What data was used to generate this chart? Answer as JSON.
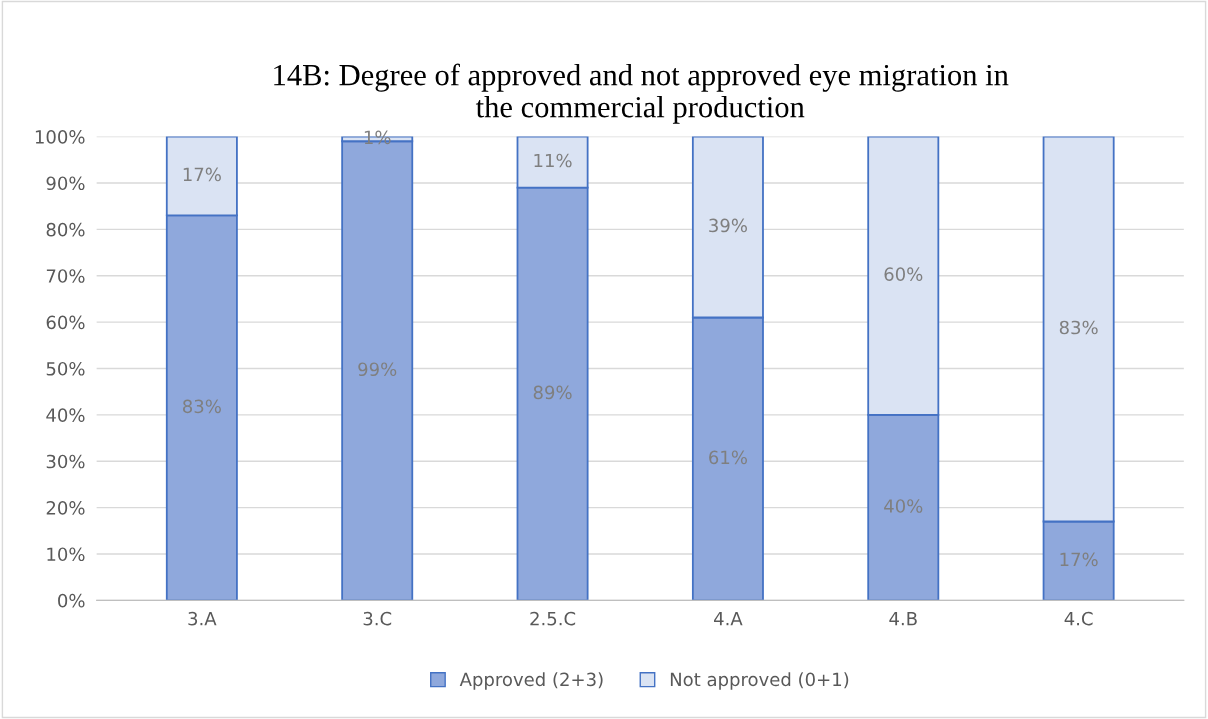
{
  "chart_data": {
    "type": "bar",
    "stacked": true,
    "title": "14B: Degree of approved and not approved eye migration in\nthe commercial production",
    "categories": [
      "3.A",
      "3.C",
      "2.5.C",
      "4.A",
      "4.B",
      "4.C"
    ],
    "series": [
      {
        "name": "Approved (2+3)",
        "color": "#8fa8dc",
        "values": [
          83,
          99,
          89,
          61,
          40,
          17
        ],
        "value_labels": [
          "83%",
          "99%",
          "89%",
          "61%",
          "40%",
          "17%"
        ]
      },
      {
        "name": "Not approved (0+1)",
        "color": "#dae3f3",
        "values": [
          17,
          1,
          11,
          39,
          60,
          83
        ],
        "value_labels": [
          "17%",
          "1%",
          "11%",
          "39%",
          "60%",
          "83%"
        ]
      }
    ],
    "ylim": [
      0,
      100
    ],
    "yticks": [
      {
        "value": 0,
        "label": "0%"
      },
      {
        "value": 10,
        "label": "10%"
      },
      {
        "value": 20,
        "label": "20%"
      },
      {
        "value": 30,
        "label": "30%"
      },
      {
        "value": 40,
        "label": "40%"
      },
      {
        "value": 50,
        "label": "50%"
      },
      {
        "value": 60,
        "label": "60%"
      },
      {
        "value": 70,
        "label": "70%"
      },
      {
        "value": 80,
        "label": "80%"
      },
      {
        "value": 90,
        "label": "90%"
      },
      {
        "value": 100,
        "label": "100%"
      }
    ],
    "grid": "y",
    "legend": "bottom"
  }
}
